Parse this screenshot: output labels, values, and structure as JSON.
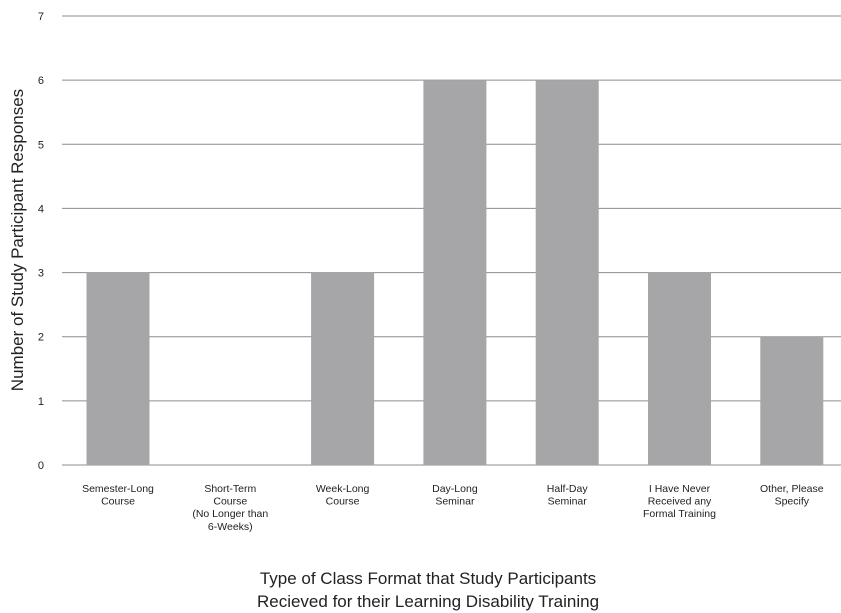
{
  "chart_data": {
    "type": "bar",
    "categories": [
      [
        "Semester-Long",
        "Course"
      ],
      [
        "Short-Term",
        "Course",
        "(No Longer than",
        "6-Weeks)"
      ],
      [
        "Week-Long",
        "Course"
      ],
      [
        "Day-Long",
        "Seminar"
      ],
      [
        "Half-Day",
        "Seminar"
      ],
      [
        "I Have Never",
        "Received any",
        "Formal Training"
      ],
      [
        "Other, Please",
        "Specify"
      ]
    ],
    "values": [
      3,
      0,
      3,
      6,
      6,
      3,
      2
    ],
    "ylim": [
      0,
      7
    ],
    "yticks": [
      0,
      1,
      2,
      3,
      4,
      5,
      6,
      7
    ],
    "ylabel": "Number of Study Participant Responses",
    "xlabel": [
      "Type of Class Format that Study Participants",
      "Recieved for their Learning Disability Training"
    ],
    "grid": true,
    "bar_color": "#a6a6a9",
    "grid_color": "#8c8c8c"
  }
}
